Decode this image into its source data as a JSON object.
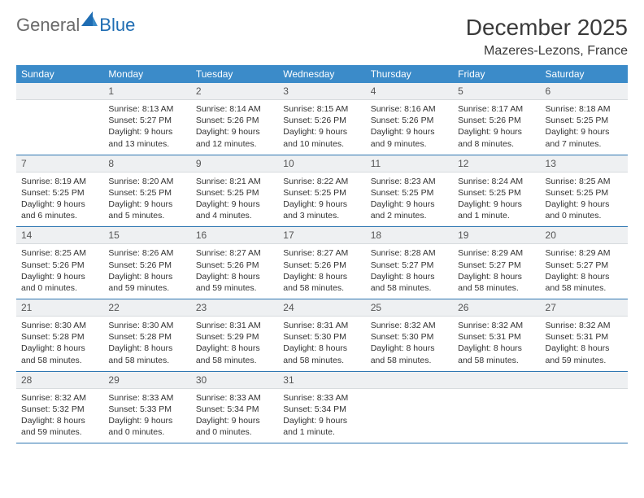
{
  "brand": {
    "part1": "General",
    "part2": "Blue"
  },
  "title": "December 2025",
  "location": "Mazeres-Lezons, France",
  "colors": {
    "header_bg": "#3b8bc9",
    "header_text": "#ffffff",
    "daynum_bg": "#eef0f2",
    "row_border": "#2f77b2",
    "logo_gray": "#6a6a6a",
    "logo_blue": "#1f6db3"
  },
  "weekdays": [
    "Sunday",
    "Monday",
    "Tuesday",
    "Wednesday",
    "Thursday",
    "Friday",
    "Saturday"
  ],
  "weeks": [
    [
      null,
      {
        "n": "1",
        "sr": "Sunrise: 8:13 AM",
        "ss": "Sunset: 5:27 PM",
        "dl": "Daylight: 9 hours and 13 minutes."
      },
      {
        "n": "2",
        "sr": "Sunrise: 8:14 AM",
        "ss": "Sunset: 5:26 PM",
        "dl": "Daylight: 9 hours and 12 minutes."
      },
      {
        "n": "3",
        "sr": "Sunrise: 8:15 AM",
        "ss": "Sunset: 5:26 PM",
        "dl": "Daylight: 9 hours and 10 minutes."
      },
      {
        "n": "4",
        "sr": "Sunrise: 8:16 AM",
        "ss": "Sunset: 5:26 PM",
        "dl": "Daylight: 9 hours and 9 minutes."
      },
      {
        "n": "5",
        "sr": "Sunrise: 8:17 AM",
        "ss": "Sunset: 5:26 PM",
        "dl": "Daylight: 9 hours and 8 minutes."
      },
      {
        "n": "6",
        "sr": "Sunrise: 8:18 AM",
        "ss": "Sunset: 5:25 PM",
        "dl": "Daylight: 9 hours and 7 minutes."
      }
    ],
    [
      {
        "n": "7",
        "sr": "Sunrise: 8:19 AM",
        "ss": "Sunset: 5:25 PM",
        "dl": "Daylight: 9 hours and 6 minutes."
      },
      {
        "n": "8",
        "sr": "Sunrise: 8:20 AM",
        "ss": "Sunset: 5:25 PM",
        "dl": "Daylight: 9 hours and 5 minutes."
      },
      {
        "n": "9",
        "sr": "Sunrise: 8:21 AM",
        "ss": "Sunset: 5:25 PM",
        "dl": "Daylight: 9 hours and 4 minutes."
      },
      {
        "n": "10",
        "sr": "Sunrise: 8:22 AM",
        "ss": "Sunset: 5:25 PM",
        "dl": "Daylight: 9 hours and 3 minutes."
      },
      {
        "n": "11",
        "sr": "Sunrise: 8:23 AM",
        "ss": "Sunset: 5:25 PM",
        "dl": "Daylight: 9 hours and 2 minutes."
      },
      {
        "n": "12",
        "sr": "Sunrise: 8:24 AM",
        "ss": "Sunset: 5:25 PM",
        "dl": "Daylight: 9 hours and 1 minute."
      },
      {
        "n": "13",
        "sr": "Sunrise: 8:25 AM",
        "ss": "Sunset: 5:25 PM",
        "dl": "Daylight: 9 hours and 0 minutes."
      }
    ],
    [
      {
        "n": "14",
        "sr": "Sunrise: 8:25 AM",
        "ss": "Sunset: 5:26 PM",
        "dl": "Daylight: 9 hours and 0 minutes."
      },
      {
        "n": "15",
        "sr": "Sunrise: 8:26 AM",
        "ss": "Sunset: 5:26 PM",
        "dl": "Daylight: 8 hours and 59 minutes."
      },
      {
        "n": "16",
        "sr": "Sunrise: 8:27 AM",
        "ss": "Sunset: 5:26 PM",
        "dl": "Daylight: 8 hours and 59 minutes."
      },
      {
        "n": "17",
        "sr": "Sunrise: 8:27 AM",
        "ss": "Sunset: 5:26 PM",
        "dl": "Daylight: 8 hours and 58 minutes."
      },
      {
        "n": "18",
        "sr": "Sunrise: 8:28 AM",
        "ss": "Sunset: 5:27 PM",
        "dl": "Daylight: 8 hours and 58 minutes."
      },
      {
        "n": "19",
        "sr": "Sunrise: 8:29 AM",
        "ss": "Sunset: 5:27 PM",
        "dl": "Daylight: 8 hours and 58 minutes."
      },
      {
        "n": "20",
        "sr": "Sunrise: 8:29 AM",
        "ss": "Sunset: 5:27 PM",
        "dl": "Daylight: 8 hours and 58 minutes."
      }
    ],
    [
      {
        "n": "21",
        "sr": "Sunrise: 8:30 AM",
        "ss": "Sunset: 5:28 PM",
        "dl": "Daylight: 8 hours and 58 minutes."
      },
      {
        "n": "22",
        "sr": "Sunrise: 8:30 AM",
        "ss": "Sunset: 5:28 PM",
        "dl": "Daylight: 8 hours and 58 minutes."
      },
      {
        "n": "23",
        "sr": "Sunrise: 8:31 AM",
        "ss": "Sunset: 5:29 PM",
        "dl": "Daylight: 8 hours and 58 minutes."
      },
      {
        "n": "24",
        "sr": "Sunrise: 8:31 AM",
        "ss": "Sunset: 5:30 PM",
        "dl": "Daylight: 8 hours and 58 minutes."
      },
      {
        "n": "25",
        "sr": "Sunrise: 8:32 AM",
        "ss": "Sunset: 5:30 PM",
        "dl": "Daylight: 8 hours and 58 minutes."
      },
      {
        "n": "26",
        "sr": "Sunrise: 8:32 AM",
        "ss": "Sunset: 5:31 PM",
        "dl": "Daylight: 8 hours and 58 minutes."
      },
      {
        "n": "27",
        "sr": "Sunrise: 8:32 AM",
        "ss": "Sunset: 5:31 PM",
        "dl": "Daylight: 8 hours and 59 minutes."
      }
    ],
    [
      {
        "n": "28",
        "sr": "Sunrise: 8:32 AM",
        "ss": "Sunset: 5:32 PM",
        "dl": "Daylight: 8 hours and 59 minutes."
      },
      {
        "n": "29",
        "sr": "Sunrise: 8:33 AM",
        "ss": "Sunset: 5:33 PM",
        "dl": "Daylight: 9 hours and 0 minutes."
      },
      {
        "n": "30",
        "sr": "Sunrise: 8:33 AM",
        "ss": "Sunset: 5:34 PM",
        "dl": "Daylight: 9 hours and 0 minutes."
      },
      {
        "n": "31",
        "sr": "Sunrise: 8:33 AM",
        "ss": "Sunset: 5:34 PM",
        "dl": "Daylight: 9 hours and 1 minute."
      },
      null,
      null,
      null
    ]
  ]
}
